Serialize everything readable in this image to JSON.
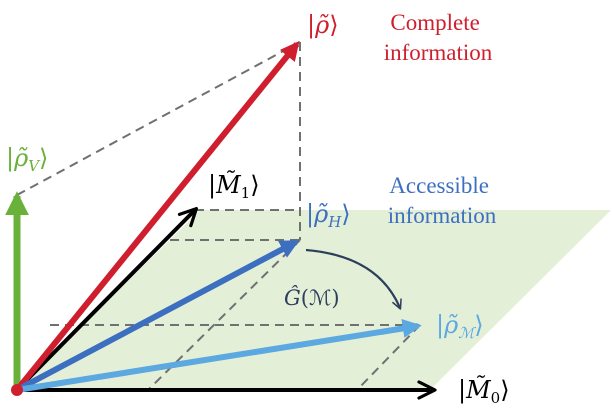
{
  "labels": {
    "rho": {
      "pre": "|",
      "sym": "ρ̃",
      "post": "⟩"
    },
    "rho_v": {
      "pre": "|",
      "sym": "ρ̃",
      "sub": "V",
      "post": "⟩"
    },
    "m1": {
      "pre": "|",
      "sym": "M̃",
      "sub": "1",
      "post": "⟩"
    },
    "rho_h": {
      "pre": "|",
      "sym": "ρ̃",
      "sub": "H",
      "post": "⟩"
    },
    "rho_m": {
      "pre": "|",
      "sym": "ρ̃",
      "sub": "ℳ",
      "post": "⟩"
    },
    "m0": {
      "pre": "|",
      "sym": "M̃",
      "sub": "0",
      "post": "⟩"
    },
    "g_map": {
      "sym": "Ĝ",
      "arg": "(ℳ)"
    }
  },
  "captions": {
    "complete": [
      "Complete",
      "information"
    ],
    "accessible": [
      "Accessible",
      "information"
    ]
  },
  "colors": {
    "red": "#cf1f2e",
    "green": "#6ab13c",
    "dark_blue": "#3d6fc0",
    "light_blue": "#5ca8e0",
    "black": "#000000",
    "plane_fill": "#e4efd8",
    "dash": "#707070",
    "origin": "#cf1f2e"
  }
}
